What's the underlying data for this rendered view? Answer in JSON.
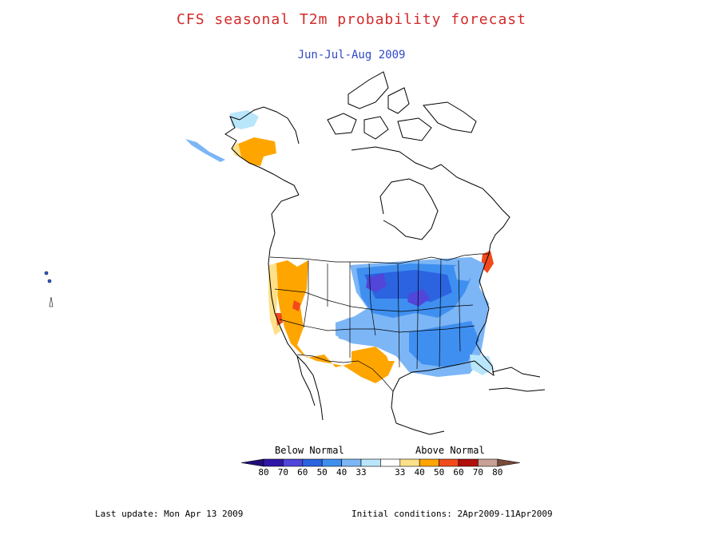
{
  "title": "CFS seasonal T2m probability forecast",
  "subtitle": "Jun-Jul-Aug 2009",
  "legend": {
    "below_label": "Below Normal",
    "above_label": "Above Normal",
    "bins": [
      {
        "label": "80",
        "color": "#3016a6"
      },
      {
        "label": "70",
        "color": "#5146d9"
      },
      {
        "label": "60",
        "color": "#2b63e0"
      },
      {
        "label": "50",
        "color": "#3f8ff0"
      },
      {
        "label": "40",
        "color": "#7cb6f6"
      },
      {
        "label": "33",
        "color": "#b9e6fb"
      },
      {
        "label": "33",
        "color": "#ffffff"
      },
      {
        "label": "40",
        "color": "#ffe08a"
      },
      {
        "label": "50",
        "color": "#ffa500"
      },
      {
        "label": "60",
        "color": "#f24a1c"
      },
      {
        "label": "70",
        "color": "#b1100c"
      },
      {
        "label": "80",
        "color": "#c8a096"
      }
    ],
    "end_below_color": "#220d7a",
    "end_above_color": "#7a4a3a"
  },
  "footer": {
    "last_update": "Last update: Mon Apr 13 2009",
    "initial_conditions": "Initial conditions: 2Apr2009-11Apr2009"
  },
  "colors": {
    "coast": "#000000",
    "title": "#d42a2a",
    "subtitle": "#2f49c8"
  }
}
